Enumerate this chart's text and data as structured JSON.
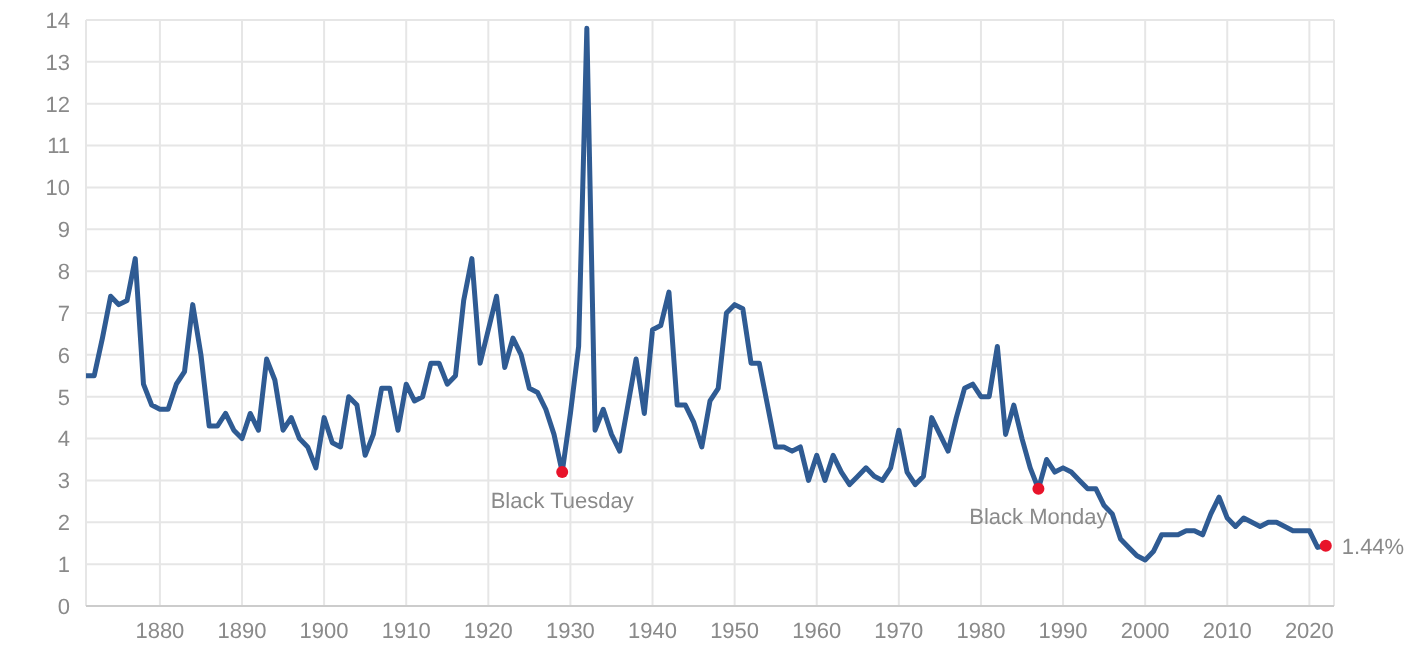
{
  "chart_data": {
    "type": "line",
    "xlim": [
      1871,
      2023
    ],
    "xticks": [
      1880,
      1890,
      1900,
      1910,
      1920,
      1930,
      1940,
      1950,
      1960,
      1970,
      1980,
      1990,
      2000,
      2010,
      2020
    ],
    "ylim": [
      0,
      14
    ],
    "yticks": [
      0,
      1,
      2,
      3,
      4,
      5,
      6,
      7,
      8,
      9,
      10,
      11,
      12,
      13,
      14
    ],
    "grid": true,
    "series": [
      {
        "color": "#2f5b93",
        "x": [
          1871,
          1872,
          1873,
          1874,
          1875,
          1876,
          1877,
          1878,
          1879,
          1880,
          1881,
          1882,
          1883,
          1884,
          1885,
          1886,
          1887,
          1888,
          1889,
          1890,
          1891,
          1892,
          1893,
          1894,
          1895,
          1896,
          1897,
          1898,
          1899,
          1900,
          1901,
          1902,
          1903,
          1904,
          1905,
          1906,
          1907,
          1908,
          1909,
          1910,
          1911,
          1912,
          1913,
          1914,
          1915,
          1916,
          1917,
          1918,
          1919,
          1920,
          1921,
          1922,
          1923,
          1924,
          1925,
          1926,
          1927,
          1928,
          1929,
          1930,
          1931,
          1932,
          1933,
          1934,
          1935,
          1936,
          1937,
          1938,
          1939,
          1940,
          1941,
          1942,
          1943,
          1944,
          1945,
          1946,
          1947,
          1948,
          1949,
          1950,
          1951,
          1952,
          1953,
          1954,
          1955,
          1956,
          1957,
          1958,
          1959,
          1960,
          1961,
          1962,
          1963,
          1964,
          1965,
          1966,
          1967,
          1968,
          1969,
          1970,
          1971,
          1972,
          1973,
          1974,
          1975,
          1976,
          1977,
          1978,
          1979,
          1980,
          1981,
          1982,
          1983,
          1984,
          1985,
          1986,
          1987,
          1988,
          1989,
          1990,
          1991,
          1992,
          1993,
          1994,
          1995,
          1996,
          1997,
          1998,
          1999,
          2000,
          2001,
          2002,
          2003,
          2004,
          2005,
          2006,
          2007,
          2008,
          2009,
          2010,
          2011,
          2012,
          2013,
          2014,
          2015,
          2016,
          2017,
          2018,
          2019,
          2020,
          2021,
          2022
        ],
        "values": [
          5.5,
          5.5,
          6.4,
          7.4,
          7.2,
          7.3,
          8.3,
          5.3,
          4.8,
          4.7,
          4.7,
          5.3,
          5.6,
          7.2,
          6.0,
          4.3,
          4.3,
          4.6,
          4.2,
          4.0,
          4.6,
          4.2,
          5.9,
          5.4,
          4.2,
          4.5,
          4.0,
          3.8,
          3.3,
          4.5,
          3.9,
          3.8,
          5.0,
          4.8,
          3.6,
          4.1,
          5.2,
          5.2,
          4.2,
          5.3,
          4.9,
          5.0,
          5.8,
          5.8,
          5.3,
          5.5,
          7.3,
          8.3,
          5.8,
          6.6,
          7.4,
          5.7,
          6.4,
          6.0,
          5.2,
          5.1,
          4.7,
          4.1,
          3.2,
          4.6,
          6.2,
          13.8,
          4.2,
          4.7,
          4.1,
          3.7,
          4.8,
          5.9,
          4.6,
          6.6,
          6.7,
          7.5,
          4.8,
          4.8,
          4.4,
          3.8,
          4.9,
          5.2,
          7.0,
          7.2,
          7.1,
          5.8,
          5.8,
          4.8,
          3.8,
          3.8,
          3.7,
          3.8,
          3.0,
          3.6,
          3.0,
          3.6,
          3.2,
          2.9,
          3.1,
          3.3,
          3.1,
          3.0,
          3.3,
          4.2,
          3.2,
          2.9,
          3.1,
          4.5,
          4.1,
          3.7,
          4.5,
          5.2,
          5.3,
          5.0,
          5.0,
          6.2,
          4.1,
          4.8,
          4.0,
          3.3,
          2.8,
          3.5,
          3.2,
          3.3,
          3.2,
          3.0,
          2.8,
          2.8,
          2.4,
          2.2,
          1.6,
          1.4,
          1.2,
          1.1,
          1.3,
          1.7,
          1.7,
          1.7,
          1.8,
          1.8,
          1.7,
          2.2,
          2.6,
          2.1,
          1.9,
          2.1,
          2.0,
          1.9,
          2.0,
          2.0,
          1.9,
          1.8,
          1.8,
          1.8,
          1.4,
          1.44
        ]
      },
      {
        "type": "scatter",
        "color": "#e8132a",
        "x": [
          1929,
          1987,
          2022
        ],
        "values": [
          3.2,
          2.8,
          1.44
        ]
      }
    ],
    "annotations": [
      {
        "text": "Black Tuesday",
        "x": 1929,
        "y": 3.2
      },
      {
        "text": "Black Monday",
        "x": 1987,
        "y": 2.8
      },
      {
        "text": "1.44%",
        "x": 2022,
        "y": 1.44
      }
    ]
  }
}
